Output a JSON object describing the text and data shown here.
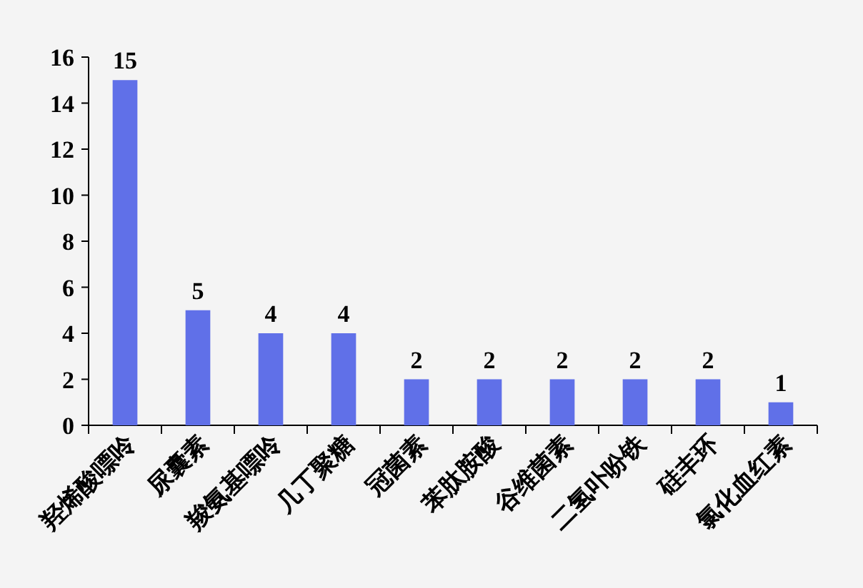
{
  "chart_data": {
    "type": "bar",
    "categories": [
      "羟烯酸嘌呤",
      "尿囊素",
      "羧氨基嘌呤",
      "几丁聚糖",
      "冠菌素",
      "苯肽胺酸",
      "谷维菌素",
      "二氢卟吩铁",
      "硅丰环",
      "氯化血红素"
    ],
    "values": [
      15,
      5,
      4,
      4,
      2,
      2,
      2,
      2,
      2,
      1
    ],
    "color": "#6070e8",
    "ylim": [
      0,
      16
    ],
    "yticks": [
      0,
      2,
      4,
      6,
      8,
      10,
      12,
      14,
      16
    ],
    "data_labels": true,
    "grid": false
  }
}
